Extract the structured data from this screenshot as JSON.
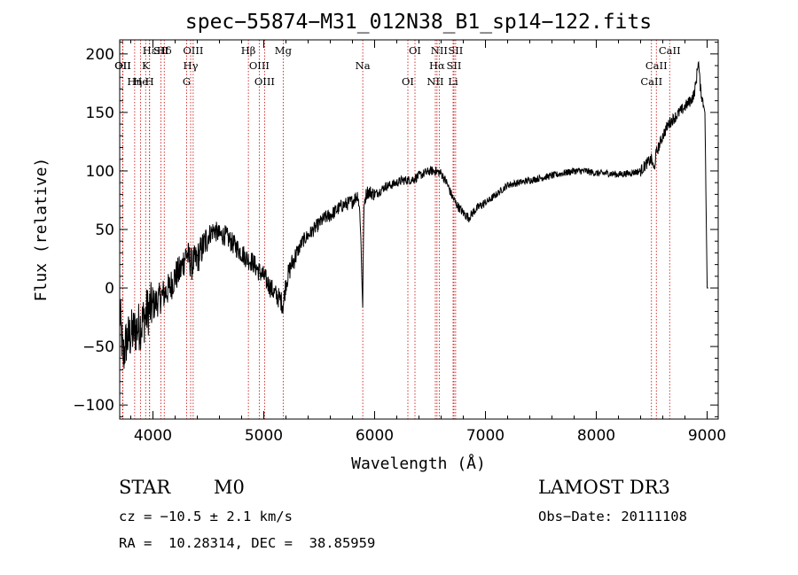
{
  "chart_data": {
    "type": "line",
    "title": "spec−55874−M31_012N38_B1_sp14−122.fits",
    "xlabel": "Wavelength (Å)",
    "ylabel": "Flux (relative)",
    "xlim": [
      3700,
      9100
    ],
    "ylim": [
      -112,
      212
    ],
    "xticks": [
      4000,
      5000,
      6000,
      7000,
      8000,
      9000
    ],
    "xtick_labels": [
      "4000",
      "5000",
      "6000",
      "7000",
      "8000",
      "9000"
    ],
    "yticks": [
      200,
      150,
      100,
      50,
      0,
      -50,
      -100
    ],
    "ytick_labels": [
      "200",
      "150",
      "100",
      "50",
      "0",
      "−50",
      "−100"
    ],
    "spectrum_anchors": {
      "x": [
        3700,
        3730,
        3760,
        3800,
        3850,
        3900,
        3950,
        4000,
        4050,
        4100,
        4150,
        4200,
        4250,
        4300,
        4350,
        4400,
        4450,
        4500,
        4550,
        4600,
        4650,
        4700,
        4750,
        4800,
        4850,
        4900,
        4950,
        5000,
        5050,
        5100,
        5150,
        5175,
        5200,
        5250,
        5300,
        5350,
        5400,
        5450,
        5500,
        5550,
        5600,
        5650,
        5700,
        5750,
        5800,
        5850,
        5870,
        5885,
        5893,
        5900,
        5910,
        5930,
        5960,
        6000,
        6050,
        6100,
        6150,
        6200,
        6250,
        6300,
        6350,
        6400,
        6450,
        6500,
        6550,
        6600,
        6650,
        6700,
        6750,
        6800,
        6850,
        6900,
        6950,
        7000,
        7050,
        7100,
        7150,
        7200,
        7300,
        7400,
        7500,
        7600,
        7700,
        7800,
        7900,
        8000,
        8100,
        8200,
        8300,
        8400,
        8450,
        8500,
        8520,
        8540,
        8560,
        8600,
        8650,
        8700,
        8750,
        8800,
        8850,
        8880,
        8900,
        8920,
        8940,
        8960,
        8980,
        9000,
        9010
      ],
      "y": [
        -20,
        -60,
        -45,
        -40,
        -35,
        -30,
        -20,
        -15,
        -10,
        -5,
        0,
        10,
        15,
        30,
        20,
        25,
        35,
        45,
        50,
        45,
        45,
        40,
        35,
        30,
        25,
        22,
        15,
        10,
        2,
        -5,
        -10,
        -15,
        5,
        20,
        30,
        40,
        45,
        50,
        55,
        60,
        62,
        66,
        70,
        72,
        74,
        80,
        60,
        10,
        -18,
        55,
        75,
        82,
        82,
        80,
        83,
        87,
        88,
        90,
        92,
        92,
        93,
        96,
        98,
        100,
        100,
        98,
        90,
        78,
        70,
        64,
        60,
        66,
        70,
        73,
        76,
        80,
        84,
        88,
        90,
        92,
        94,
        96,
        98,
        100,
        100,
        98,
        98,
        97,
        98,
        100,
        106,
        110,
        100,
        115,
        120,
        130,
        140,
        145,
        150,
        155,
        160,
        165,
        175,
        195,
        170,
        160,
        150,
        0,
        0
      ]
    },
    "spectral_lines": [
      {
        "name": "Hε",
        "wavelength": 3970
      },
      {
        "name": "K",
        "wavelength": 3934
      },
      {
        "name": "H",
        "wavelength": 3969
      },
      {
        "name": "Hδ",
        "wavelength": 4102
      },
      {
        "name": "OII",
        "wavelength": 3727
      },
      {
        "name": "He",
        "wavelength": 3889
      },
      {
        "name": "SII",
        "wavelength": 4072
      },
      {
        "name": "OII",
        "wavelength": 3729
      },
      {
        "name": "Hη",
        "wavelength": 3835
      },
      {
        "name": "OIII",
        "wavelength": 4363
      },
      {
        "name": "Hγ",
        "wavelength": 4340
      },
      {
        "name": "G",
        "wavelength": 4304
      },
      {
        "name": "Hβ",
        "wavelength": 4861
      },
      {
        "name": "OIII",
        "wavelength": 4959
      },
      {
        "name": "OIII",
        "wavelength": 5007
      },
      {
        "name": "Mg",
        "wavelength": 5175
      },
      {
        "name": "Na",
        "wavelength": 5893
      },
      {
        "name": "OI",
        "wavelength": 6300
      },
      {
        "name": "OI",
        "wavelength": 6364
      },
      {
        "name": "Hα",
        "wavelength": 6563
      },
      {
        "name": "NII",
        "wavelength": 6548
      },
      {
        "name": "NII",
        "wavelength": 6583
      },
      {
        "name": "SII",
        "wavelength": 6716
      },
      {
        "name": "Li",
        "wavelength": 6708
      },
      {
        "name": "SII",
        "wavelength": 6731
      },
      {
        "name": "CaII",
        "wavelength": 8542
      },
      {
        "name": "CaII",
        "wavelength": 8498
      },
      {
        "name": "CaII",
        "wavelength": 8662
      }
    ]
  },
  "info": {
    "class": "STAR",
    "subclass": "M0",
    "survey": "LAMOST DR3",
    "redshift": "cz = −10.5 ± 2.1 km/s",
    "obs_date": "Obs−Date: 20111108",
    "coords": "RA =  10.28314, DEC =  38.85959"
  },
  "colors": {
    "spectrum": "#000000",
    "line_markers": "#cc0000",
    "axes": "#000000"
  }
}
